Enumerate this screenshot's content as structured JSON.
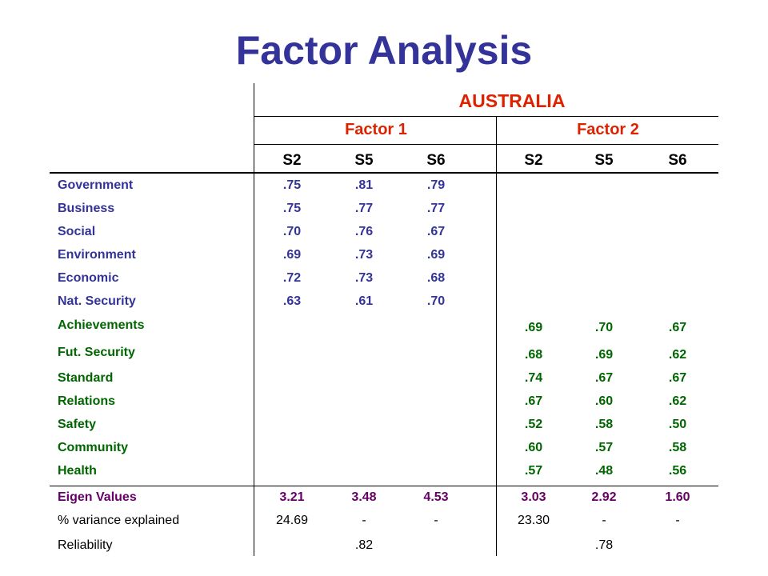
{
  "title": "Factor Analysis",
  "country": "AUSTRALIA",
  "factors": [
    "Factor 1",
    "Factor 2"
  ],
  "subcols": [
    "S2",
    "S5",
    "S6",
    "S2",
    "S5",
    "S6"
  ],
  "rows": [
    {
      "label": "Government",
      "values": [
        ".75",
        ".81",
        ".79",
        "",
        "",
        ""
      ]
    },
    {
      "label": "Business",
      "values": [
        ".75",
        ".77",
        ".77",
        "",
        "",
        ""
      ]
    },
    {
      "label": "Social",
      "values": [
        ".70",
        ".76",
        ".67",
        "",
        "",
        ""
      ]
    },
    {
      "label": "Environment",
      "values": [
        ".69",
        ".73",
        ".69",
        "",
        "",
        ""
      ]
    },
    {
      "label": "Economic",
      "values": [
        ".72",
        ".73",
        ".68",
        "",
        "",
        ""
      ]
    },
    {
      "label": "Nat. Security",
      "values": [
        ".63",
        ".61",
        ".70",
        "",
        "",
        ""
      ]
    },
    {
      "label": "Achievements",
      "values": [
        "",
        "",
        "",
        ".69",
        ".70",
        ".67"
      ]
    },
    {
      "label": "Fut. Security",
      "values": [
        "",
        "",
        "",
        ".68",
        ".69",
        ".62"
      ]
    },
    {
      "label": "Standard",
      "values": [
        "",
        "",
        "",
        ".74",
        ".67",
        ".67"
      ]
    },
    {
      "label": "Relations",
      "values": [
        "",
        "",
        "",
        ".67",
        ".60",
        ".62"
      ]
    },
    {
      "label": "Safety",
      "values": [
        "",
        "",
        "",
        ".52",
        ".58",
        ".50"
      ]
    },
    {
      "label": "Community",
      "values": [
        "",
        "",
        "",
        ".60",
        ".57",
        ".58"
      ]
    },
    {
      "label": "Health",
      "values": [
        "",
        "",
        "",
        ".57",
        ".48",
        ".56"
      ]
    }
  ],
  "eigen": {
    "label": "Eigen Values",
    "values": [
      "3.21",
      "3.48",
      "4.53",
      "3.03",
      "2.92",
      "1.60"
    ]
  },
  "variance": {
    "label": "% variance explained",
    "values": [
      "24.69",
      "-",
      "-",
      "23.30",
      "-",
      "-"
    ]
  },
  "reliability": {
    "label": "Reliability",
    "values": [
      ".82",
      ".78"
    ]
  }
}
